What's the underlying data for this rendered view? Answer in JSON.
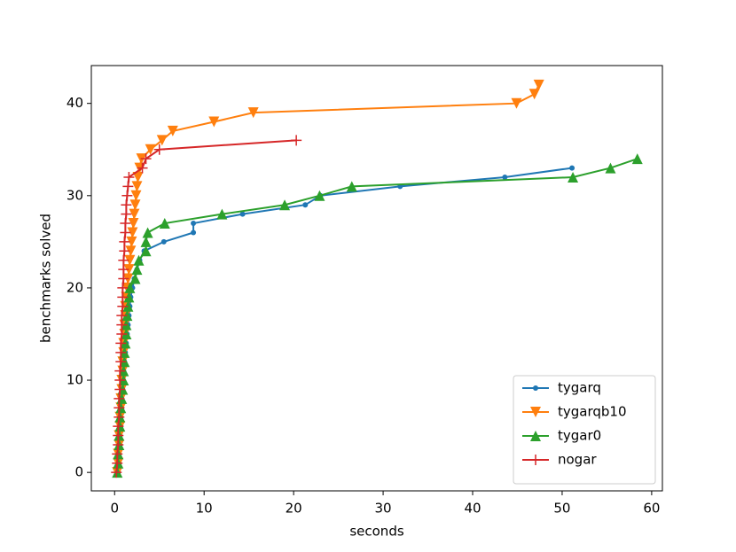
{
  "chart_data": {
    "type": "line",
    "xlabel": "seconds",
    "ylabel": "benchmarks solved",
    "xlim": [
      -2.6,
      61.2
    ],
    "xticks": [
      0,
      10,
      20,
      30,
      40,
      50,
      60
    ],
    "ylim": [
      -2.0,
      44.1
    ],
    "yticks": [
      0,
      10,
      20,
      30,
      40
    ],
    "legend": "lower right",
    "grid": false,
    "series": [
      {
        "name": "tygarq",
        "color": "#1f77b4",
        "marker": "circle",
        "x": [
          0.4,
          0.5,
          0.5,
          0.6,
          0.6,
          0.7,
          0.7,
          0.8,
          0.8,
          0.9,
          0.9,
          1.0,
          1.1,
          1.2,
          1.3,
          1.4,
          1.5,
          1.6,
          1.7,
          1.8,
          2.0,
          2.2,
          2.5,
          2.8,
          3.3,
          5.5,
          8.8,
          8.8,
          14.3,
          21.3,
          23.0,
          31.9,
          43.6,
          51.1
        ],
        "values": [
          0,
          1,
          2,
          3,
          4,
          5,
          6,
          7,
          8,
          9,
          10,
          11,
          12,
          13,
          14,
          15,
          16,
          17,
          18,
          19,
          20,
          21,
          22,
          23,
          24,
          25,
          26,
          27,
          28,
          29,
          30,
          31,
          32,
          33
        ]
      },
      {
        "name": "tygarqb10",
        "color": "#ff7f0e",
        "marker": "triangle-down",
        "x": [
          0.3,
          0.4,
          0.4,
          0.5,
          0.5,
          0.6,
          0.6,
          0.7,
          0.7,
          0.8,
          0.8,
          0.9,
          0.9,
          1.0,
          1.0,
          1.1,
          1.1,
          1.2,
          1.2,
          1.3,
          1.4,
          1.5,
          1.6,
          1.7,
          1.8,
          1.9,
          2.0,
          2.1,
          2.2,
          2.3,
          2.4,
          2.5,
          2.6,
          2.8,
          3.0,
          4.0,
          5.3,
          6.5,
          11.1,
          15.5,
          44.9,
          46.9,
          47.4
        ],
        "values": [
          0,
          1,
          2,
          3,
          4,
          5,
          6,
          7,
          8,
          9,
          10,
          11,
          12,
          13,
          14,
          15,
          16,
          17,
          18,
          19,
          20,
          21,
          22,
          23,
          24,
          25,
          26,
          27,
          28,
          29,
          30,
          31,
          32,
          33,
          34,
          35,
          36,
          37,
          38,
          39,
          40,
          41,
          42
        ]
      },
      {
        "name": "tygar0",
        "color": "#2ca02c",
        "marker": "triangle-up",
        "x": [
          0.3,
          0.4,
          0.4,
          0.5,
          0.5,
          0.6,
          0.6,
          0.7,
          0.8,
          0.9,
          1.0,
          1.0,
          1.1,
          1.1,
          1.2,
          1.3,
          1.3,
          1.4,
          1.5,
          1.6,
          1.7,
          2.3,
          2.5,
          2.7,
          3.5,
          3.5,
          3.7,
          5.6,
          12.0,
          19.0,
          22.9,
          26.5,
          51.2,
          55.4,
          58.4
        ],
        "values": [
          0,
          1,
          2,
          3,
          4,
          5,
          6,
          7,
          8,
          9,
          10,
          11,
          12,
          13,
          14,
          15,
          16,
          17,
          18,
          19,
          20,
          21,
          22,
          23,
          24,
          25,
          26,
          27,
          28,
          29,
          30,
          31,
          32,
          33,
          34
        ]
      },
      {
        "name": "nogar",
        "color": "#d62728",
        "marker": "plus",
        "x": [
          0.2,
          0.3,
          0.3,
          0.4,
          0.4,
          0.4,
          0.5,
          0.5,
          0.5,
          0.6,
          0.6,
          0.6,
          0.7,
          0.7,
          0.7,
          0.8,
          0.8,
          0.8,
          0.9,
          0.9,
          0.9,
          1.0,
          1.0,
          1.0,
          1.1,
          1.1,
          1.2,
          1.2,
          1.3,
          1.3,
          1.4,
          1.5,
          1.6,
          3.1,
          3.5,
          5.0,
          20.3
        ],
        "values": [
          0,
          1,
          2,
          3,
          4,
          5,
          6,
          7,
          8,
          9,
          10,
          11,
          12,
          13,
          14,
          15,
          16,
          17,
          18,
          19,
          20,
          21,
          22,
          23,
          24,
          25,
          26,
          27,
          28,
          29,
          30,
          31,
          32,
          33,
          34,
          35,
          36
        ]
      }
    ]
  }
}
